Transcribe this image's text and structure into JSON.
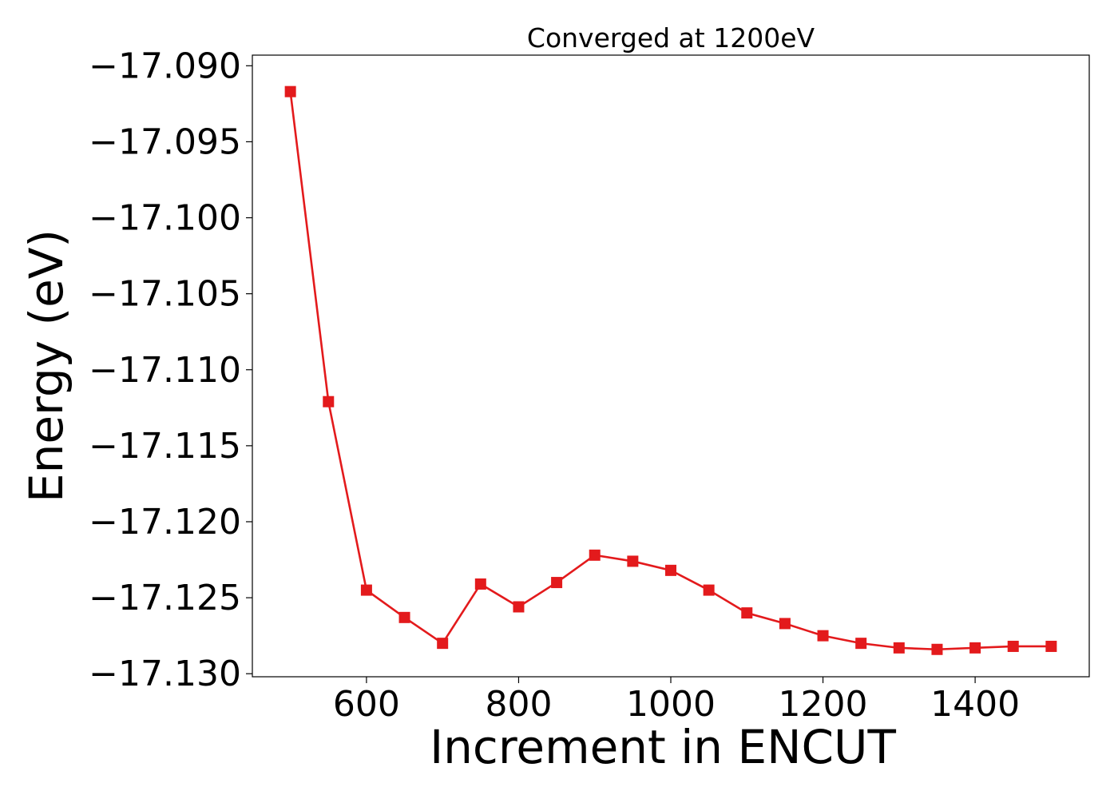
{
  "chart_data": {
    "type": "line",
    "title": "Converged at 1200eV",
    "xlabel": "Increment in ENCUT",
    "ylabel": "Energy (eV)",
    "xlim": [
      450,
      1550
    ],
    "ylim": [
      -17.1302,
      -17.0893
    ],
    "x_ticks": [
      600,
      800,
      1000,
      1200,
      1400
    ],
    "x_tick_labels": [
      "600",
      "800",
      "1000",
      "1200",
      "1400"
    ],
    "y_ticks": [
      -17.13,
      -17.125,
      -17.12,
      -17.115,
      -17.11,
      -17.105,
      -17.1,
      -17.095,
      -17.09
    ],
    "y_tick_labels": [
      "−17.130",
      "−17.125",
      "−17.120",
      "−17.115",
      "−17.110",
      "−17.105",
      "−17.100",
      "−17.095",
      "−17.090"
    ],
    "grid": false,
    "series": [
      {
        "color": "#e31a1c",
        "marker": "square",
        "x": [
          500,
          550,
          600,
          650,
          700,
          750,
          800,
          850,
          900,
          950,
          1000,
          1050,
          1100,
          1150,
          1200,
          1250,
          1300,
          1350,
          1400,
          1450,
          1500
        ],
        "y": [
          -17.0917,
          -17.1121,
          -17.1245,
          -17.1263,
          -17.128,
          -17.1241,
          -17.1256,
          -17.124,
          -17.1222,
          -17.1226,
          -17.1232,
          -17.1245,
          -17.126,
          -17.1267,
          -17.1275,
          -17.128,
          -17.1283,
          -17.1284,
          -17.1283,
          -17.1282,
          -17.1282
        ]
      }
    ]
  }
}
